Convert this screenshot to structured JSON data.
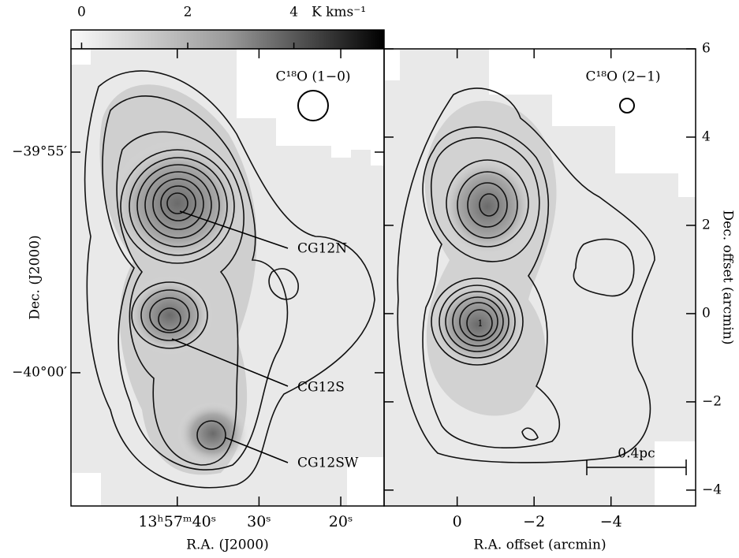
{
  "chart_data": [
    {
      "type": "colorbar",
      "label": "K kms⁻¹",
      "xlim": [
        -0.2,
        5.7
      ],
      "xticks": [
        0,
        2,
        4
      ]
    },
    {
      "type": "contour",
      "title": "C¹⁸O (1−0)",
      "xlabel": "R.A. (J2000)",
      "ylabel": "Dec. (J2000)",
      "xlim": [
        53,
        14.7
      ],
      "ylim": [
        -2403.02,
        -2392.66
      ],
      "xticks": [
        {
          "value": 40,
          "label": "13ʰ57ᵐ40ˢ"
        },
        {
          "value": 30,
          "label": "30ˢ"
        },
        {
          "value": 20,
          "label": "20ˢ"
        }
      ],
      "yticks": [
        {
          "value": -2395,
          "label": "−39°55′"
        },
        {
          "value": -2400,
          "label": "−40°00′"
        }
      ],
      "annotations": [
        "CG12N",
        "CG12S",
        "CG12SW"
      ]
    },
    {
      "type": "contour",
      "title": "C¹⁸O (2−1)",
      "xlabel": "R.A. offset (arcmin)",
      "ylabel": "Dec. offset (arcmin)",
      "xlim": [
        1.9,
        -6.2
      ],
      "ylim": [
        -4.36,
        6
      ],
      "xticks": [
        0,
        {
          "value": -2,
          "label": "−2"
        },
        {
          "value": -4,
          "label": "−4"
        }
      ],
      "yticks": [
        {
          "value": -4,
          "label": "−4"
        },
        {
          "value": -2,
          "label": "−2"
        },
        0,
        2,
        4,
        6
      ],
      "annotations": [
        "1",
        "0.4pc"
      ]
    }
  ]
}
